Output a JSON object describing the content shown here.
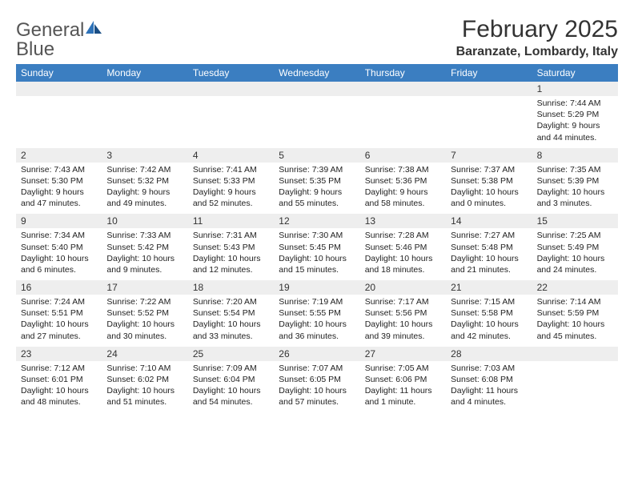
{
  "logo": {
    "text1": "General",
    "text2": "Blue"
  },
  "title": "February 2025",
  "location": "Baranzate, Lombardy, Italy",
  "colors": {
    "header_bg": "#3b7ec1",
    "header_text": "#ffffff",
    "daynum_bg": "#eeeeee",
    "text": "#222222",
    "logo_gray": "#555555",
    "logo_blue": "#2e72b8"
  },
  "weekdays": [
    "Sunday",
    "Monday",
    "Tuesday",
    "Wednesday",
    "Thursday",
    "Friday",
    "Saturday"
  ],
  "weeks": [
    {
      "nums": [
        "",
        "",
        "",
        "",
        "",
        "",
        "1"
      ],
      "cells": [
        {
          "sunrise": "",
          "sunset": "",
          "daylight": ""
        },
        {
          "sunrise": "",
          "sunset": "",
          "daylight": ""
        },
        {
          "sunrise": "",
          "sunset": "",
          "daylight": ""
        },
        {
          "sunrise": "",
          "sunset": "",
          "daylight": ""
        },
        {
          "sunrise": "",
          "sunset": "",
          "daylight": ""
        },
        {
          "sunrise": "",
          "sunset": "",
          "daylight": ""
        },
        {
          "sunrise": "Sunrise: 7:44 AM",
          "sunset": "Sunset: 5:29 PM",
          "daylight": "Daylight: 9 hours and 44 minutes."
        }
      ]
    },
    {
      "nums": [
        "2",
        "3",
        "4",
        "5",
        "6",
        "7",
        "8"
      ],
      "cells": [
        {
          "sunrise": "Sunrise: 7:43 AM",
          "sunset": "Sunset: 5:30 PM",
          "daylight": "Daylight: 9 hours and 47 minutes."
        },
        {
          "sunrise": "Sunrise: 7:42 AM",
          "sunset": "Sunset: 5:32 PM",
          "daylight": "Daylight: 9 hours and 49 minutes."
        },
        {
          "sunrise": "Sunrise: 7:41 AM",
          "sunset": "Sunset: 5:33 PM",
          "daylight": "Daylight: 9 hours and 52 minutes."
        },
        {
          "sunrise": "Sunrise: 7:39 AM",
          "sunset": "Sunset: 5:35 PM",
          "daylight": "Daylight: 9 hours and 55 minutes."
        },
        {
          "sunrise": "Sunrise: 7:38 AM",
          "sunset": "Sunset: 5:36 PM",
          "daylight": "Daylight: 9 hours and 58 minutes."
        },
        {
          "sunrise": "Sunrise: 7:37 AM",
          "sunset": "Sunset: 5:38 PM",
          "daylight": "Daylight: 10 hours and 0 minutes."
        },
        {
          "sunrise": "Sunrise: 7:35 AM",
          "sunset": "Sunset: 5:39 PM",
          "daylight": "Daylight: 10 hours and 3 minutes."
        }
      ]
    },
    {
      "nums": [
        "9",
        "10",
        "11",
        "12",
        "13",
        "14",
        "15"
      ],
      "cells": [
        {
          "sunrise": "Sunrise: 7:34 AM",
          "sunset": "Sunset: 5:40 PM",
          "daylight": "Daylight: 10 hours and 6 minutes."
        },
        {
          "sunrise": "Sunrise: 7:33 AM",
          "sunset": "Sunset: 5:42 PM",
          "daylight": "Daylight: 10 hours and 9 minutes."
        },
        {
          "sunrise": "Sunrise: 7:31 AM",
          "sunset": "Sunset: 5:43 PM",
          "daylight": "Daylight: 10 hours and 12 minutes."
        },
        {
          "sunrise": "Sunrise: 7:30 AM",
          "sunset": "Sunset: 5:45 PM",
          "daylight": "Daylight: 10 hours and 15 minutes."
        },
        {
          "sunrise": "Sunrise: 7:28 AM",
          "sunset": "Sunset: 5:46 PM",
          "daylight": "Daylight: 10 hours and 18 minutes."
        },
        {
          "sunrise": "Sunrise: 7:27 AM",
          "sunset": "Sunset: 5:48 PM",
          "daylight": "Daylight: 10 hours and 21 minutes."
        },
        {
          "sunrise": "Sunrise: 7:25 AM",
          "sunset": "Sunset: 5:49 PM",
          "daylight": "Daylight: 10 hours and 24 minutes."
        }
      ]
    },
    {
      "nums": [
        "16",
        "17",
        "18",
        "19",
        "20",
        "21",
        "22"
      ],
      "cells": [
        {
          "sunrise": "Sunrise: 7:24 AM",
          "sunset": "Sunset: 5:51 PM",
          "daylight": "Daylight: 10 hours and 27 minutes."
        },
        {
          "sunrise": "Sunrise: 7:22 AM",
          "sunset": "Sunset: 5:52 PM",
          "daylight": "Daylight: 10 hours and 30 minutes."
        },
        {
          "sunrise": "Sunrise: 7:20 AM",
          "sunset": "Sunset: 5:54 PM",
          "daylight": "Daylight: 10 hours and 33 minutes."
        },
        {
          "sunrise": "Sunrise: 7:19 AM",
          "sunset": "Sunset: 5:55 PM",
          "daylight": "Daylight: 10 hours and 36 minutes."
        },
        {
          "sunrise": "Sunrise: 7:17 AM",
          "sunset": "Sunset: 5:56 PM",
          "daylight": "Daylight: 10 hours and 39 minutes."
        },
        {
          "sunrise": "Sunrise: 7:15 AM",
          "sunset": "Sunset: 5:58 PM",
          "daylight": "Daylight: 10 hours and 42 minutes."
        },
        {
          "sunrise": "Sunrise: 7:14 AM",
          "sunset": "Sunset: 5:59 PM",
          "daylight": "Daylight: 10 hours and 45 minutes."
        }
      ]
    },
    {
      "nums": [
        "23",
        "24",
        "25",
        "26",
        "27",
        "28",
        ""
      ],
      "cells": [
        {
          "sunrise": "Sunrise: 7:12 AM",
          "sunset": "Sunset: 6:01 PM",
          "daylight": "Daylight: 10 hours and 48 minutes."
        },
        {
          "sunrise": "Sunrise: 7:10 AM",
          "sunset": "Sunset: 6:02 PM",
          "daylight": "Daylight: 10 hours and 51 minutes."
        },
        {
          "sunrise": "Sunrise: 7:09 AM",
          "sunset": "Sunset: 6:04 PM",
          "daylight": "Daylight: 10 hours and 54 minutes."
        },
        {
          "sunrise": "Sunrise: 7:07 AM",
          "sunset": "Sunset: 6:05 PM",
          "daylight": "Daylight: 10 hours and 57 minutes."
        },
        {
          "sunrise": "Sunrise: 7:05 AM",
          "sunset": "Sunset: 6:06 PM",
          "daylight": "Daylight: 11 hours and 1 minute."
        },
        {
          "sunrise": "Sunrise: 7:03 AM",
          "sunset": "Sunset: 6:08 PM",
          "daylight": "Daylight: 11 hours and 4 minutes."
        },
        {
          "sunrise": "",
          "sunset": "",
          "daylight": ""
        }
      ]
    }
  ]
}
